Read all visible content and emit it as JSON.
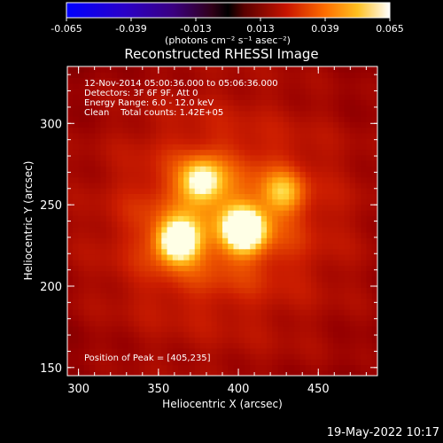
{
  "colorbar": {
    "tick_labels": [
      "-0.065",
      "-0.039",
      "-0.013",
      "0.013",
      "0.039",
      "0.065"
    ],
    "unit_label": "(photons cm⁻² s⁻¹ asec⁻²)",
    "range": [
      -0.065,
      0.065
    ]
  },
  "footer": {
    "timestamp": "19-May-2022 10:17"
  },
  "chart_data": {
    "type": "heatmap",
    "title": "Reconstructed RHESSI Image",
    "xlabel": "Heliocentric X (arcsec)",
    "ylabel": "Heliocentric Y (arcsec)",
    "xlim": [
      293,
      487
    ],
    "ylim": [
      145,
      335
    ],
    "xticks": [
      "300",
      "350",
      "400",
      "450"
    ],
    "yticks": [
      "150",
      "200",
      "250",
      "300"
    ],
    "info_lines": [
      "12-Nov-2014 05:00:36.000 to 05:06:36.000",
      "Detectors: 3F 6F 9F, Att 0",
      "Energy Range: 6.0 - 12.0 keV",
      "Clean    Total counts: 1.42E+05"
    ],
    "peak_label": "Position of Peak = [405,235]",
    "sources": [
      {
        "x": 362,
        "y": 228,
        "intensity": 0.95
      },
      {
        "x": 404,
        "y": 235,
        "intensity": 1.0
      },
      {
        "x": 377,
        "y": 265,
        "intensity": 0.7
      },
      {
        "x": 428,
        "y": 258,
        "intensity": 0.45
      }
    ],
    "background_level": 0.32,
    "colormap": "red-temperature"
  }
}
